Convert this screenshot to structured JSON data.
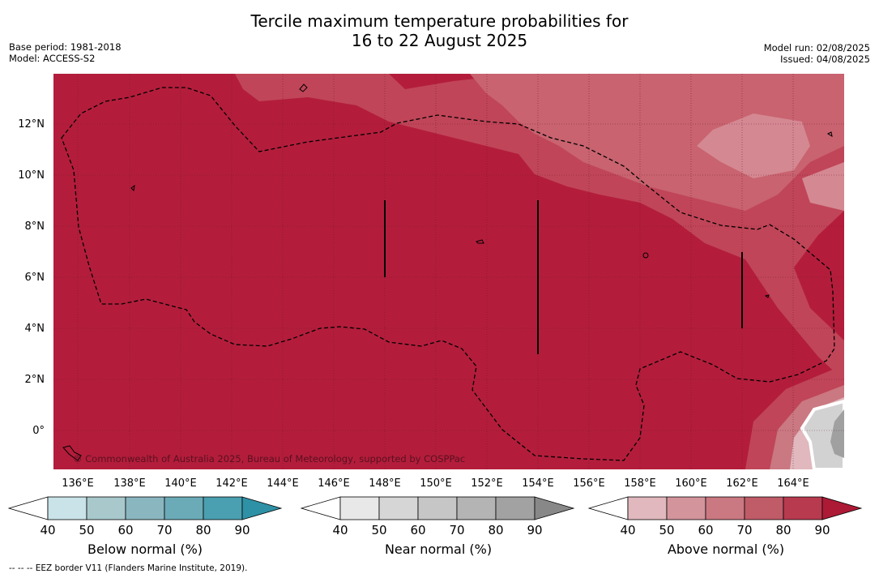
{
  "header": {
    "title_line1": "Tercile maximum temperature probabilities for",
    "title_line2": "16 to 22 August 2025",
    "base_period": "Base period: 1981-2018",
    "model": "Model: ACCESS-S2",
    "model_run": "Model run: 02/08/2025",
    "issued": "Issued: 04/08/2025"
  },
  "map": {
    "lon_labels": [
      "136°E",
      "138°E",
      "140°E",
      "142°E",
      "144°E",
      "146°E",
      "148°E",
      "150°E",
      "152°E",
      "154°E",
      "156°E",
      "158°E",
      "160°E",
      "162°E",
      "164°E"
    ],
    "lat_labels": [
      "12°N",
      "10°N",
      "8°N",
      "6°N",
      "4°N",
      "2°N",
      "0°"
    ],
    "copyright": "© Commonwealth of Australia 2025, Bureau of Meteorology, supported by COSPPac",
    "background_color": "#b31d3b"
  },
  "colorbars": [
    {
      "name": "below",
      "label": "Below normal (%)",
      "ticks": [
        "40",
        "50",
        "60",
        "70",
        "80",
        "90"
      ],
      "colors": [
        "#c9e3e8",
        "#a8c8cc",
        "#8ab6bf",
        "#6aabb7",
        "#4aa0b1",
        "#2e91a6"
      ]
    },
    {
      "name": "near",
      "label": "Near normal (%)",
      "ticks": [
        "40",
        "50",
        "60",
        "70",
        "80",
        "90"
      ],
      "colors": [
        "#e8e8e8",
        "#d6d6d6",
        "#c6c6c6",
        "#b4b4b4",
        "#a2a2a2",
        "#888888"
      ]
    },
    {
      "name": "above",
      "label": "Above normal (%)",
      "ticks": [
        "40",
        "50",
        "60",
        "70",
        "80",
        "90"
      ],
      "colors": [
        "#e0b8bd",
        "#d4949c",
        "#ca7881",
        "#c05b68",
        "#b83a4f",
        "#ad1a36"
      ]
    }
  ],
  "legend": {
    "eez_note": "--  --  -- EEZ border V11 (Flanders Marine Institute, 2019)."
  }
}
